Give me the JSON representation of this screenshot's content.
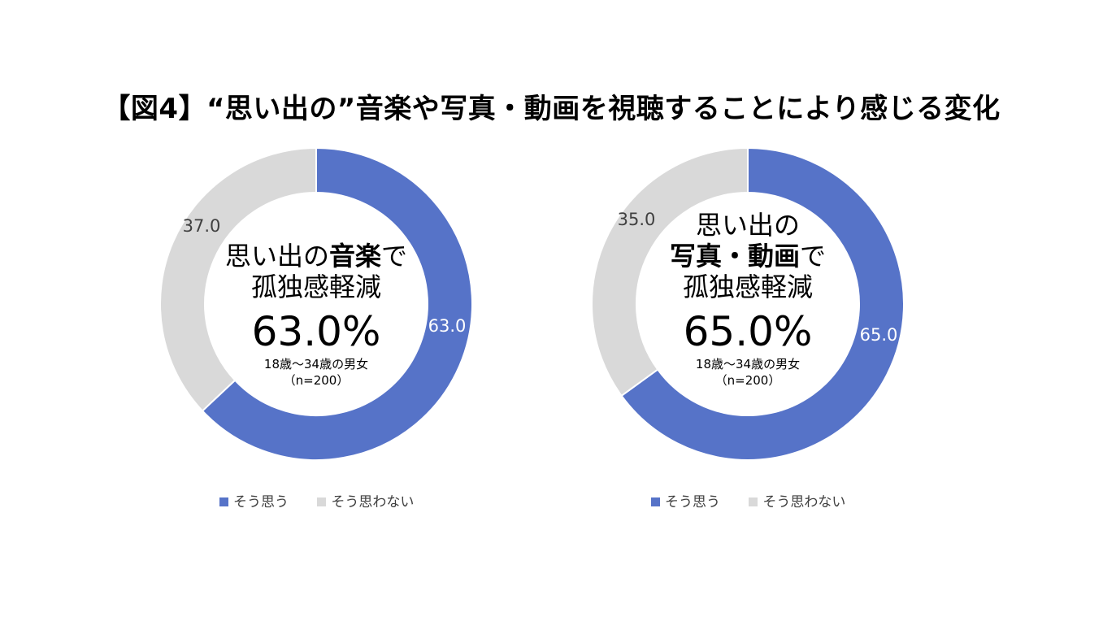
{
  "title": "【図4】“思い出の”音楽や写真・動画を視聴することにより感じる変化",
  "colors": {
    "agree": "#5673c8",
    "disagree": "#d9d9d9"
  },
  "chart_data": [
    {
      "type": "pie",
      "variant": "donut",
      "slices": [
        {
          "name": "そう思う",
          "value": 63.0,
          "label": "63.0"
        },
        {
          "name": "そう思わない",
          "value": 37.0,
          "label": "37.0"
        }
      ],
      "legend": [
        "そう思う",
        "そう思わない"
      ],
      "legend_position": "bottom",
      "center": {
        "line1_normal": "思い出の",
        "line1_bold": "音楽",
        "line1_tail": "で",
        "line2": "孤独感軽減",
        "percent": "63.0%",
        "sub1": "18歳～34歳の男女",
        "sub2": "（n=200）"
      }
    },
    {
      "type": "pie",
      "variant": "donut",
      "slices": [
        {
          "name": "そう思う",
          "value": 65.0,
          "label": "65.0"
        },
        {
          "name": "そう思わない",
          "value": 35.0,
          "label": "35.0"
        }
      ],
      "legend": [
        "そう思う",
        "そう思わない"
      ],
      "legend_position": "bottom",
      "center": {
        "line0": "思い出の",
        "line1_bold": "写真・動画",
        "line1_tail": "で",
        "line2": "孤独感軽減",
        "percent": "65.0%",
        "sub1": "18歳～34歳の男女",
        "sub2": "（n=200）"
      }
    }
  ]
}
